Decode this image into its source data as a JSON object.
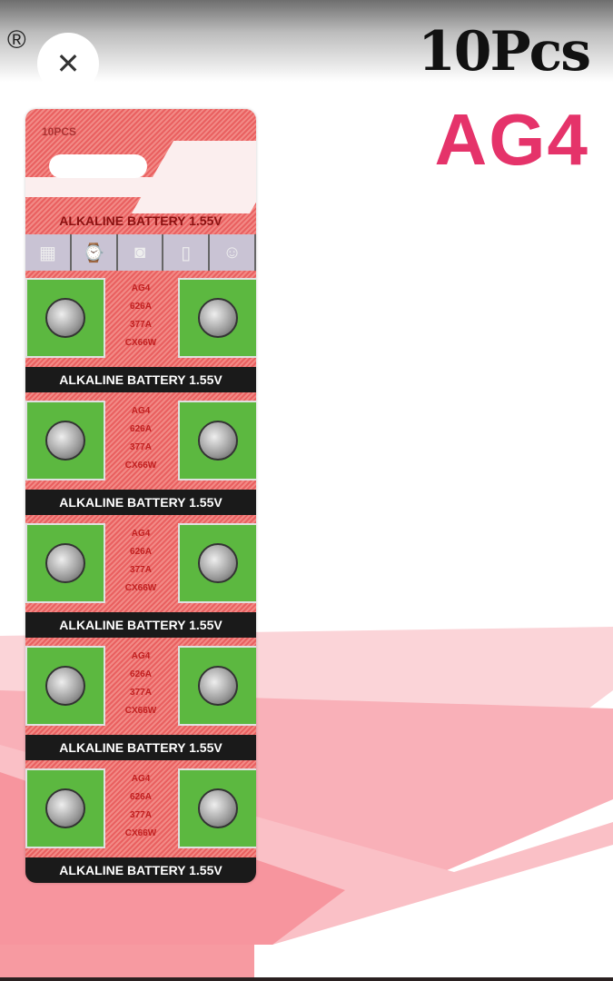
{
  "viewer": {
    "close_icon": "close-icon"
  },
  "product_image": {
    "registered_mark": "®",
    "count_title": "10Pcs",
    "model_title": "AG4",
    "brand_color": "#e5336a",
    "card": {
      "pcs_label": "10PCS",
      "top_banner": "ALKALINE BATTERY 1.55V",
      "device_icons": [
        "calculator-icon",
        "watch-icon",
        "camera-icon",
        "phone-icon",
        "toy-icon"
      ],
      "models": [
        "AG4",
        "626A",
        "377A",
        "CX66W"
      ],
      "band_label": "ALKALINE BATTERY 1.55V"
    }
  }
}
